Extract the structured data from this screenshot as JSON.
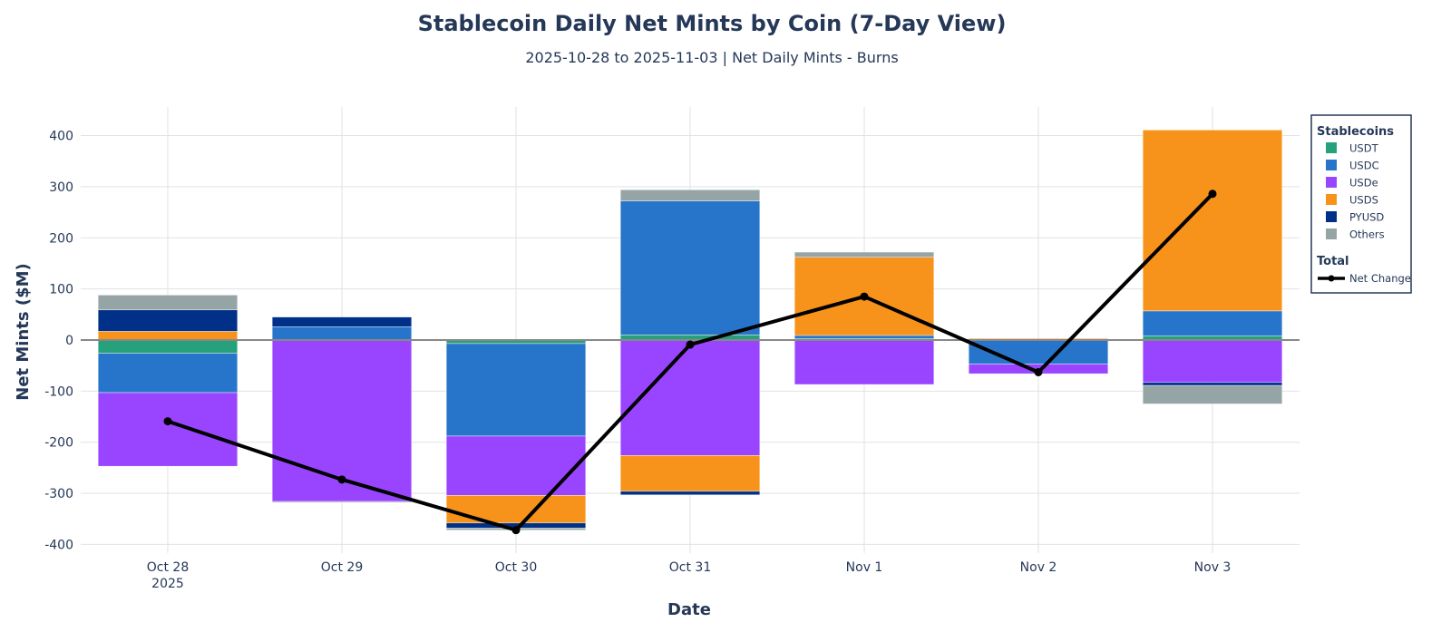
{
  "chart_data": {
    "type": "bar",
    "barmode": "relative",
    "title": "Stablecoin Daily Net Mints by Coin (7-Day View)",
    "subtitle": "2025-10-28 to 2025-11-03 | Net Daily Mints - Burns",
    "xlabel": "Date",
    "ylabel": "Net Mints ($M)",
    "categories": [
      "Oct 28",
      "Oct 29",
      "Oct 30",
      "Oct 31",
      "Nov 1",
      "Nov 2",
      "Nov 3"
    ],
    "x_year_label": "2025",
    "ylim": [
      -417,
      456
    ],
    "yticks": [
      -400,
      -300,
      -200,
      -100,
      0,
      100,
      200,
      300,
      400
    ],
    "grid": true,
    "legend_position": "right",
    "legend_groups": {
      "bars": "Stablecoins",
      "line": "Total"
    },
    "series": [
      {
        "name": "USDT",
        "color": "#26a17b",
        "values": [
          -26,
          0,
          -7,
          10,
          3,
          0,
          8
        ]
      },
      {
        "name": "USDC",
        "color": "#2775ca",
        "values": [
          -77,
          26,
          -181,
          262,
          6,
          -47,
          49
        ]
      },
      {
        "name": "USDe",
        "color": "#9945ff",
        "values": [
          -144,
          -316,
          -116,
          -226,
          -87,
          -19,
          -83
        ]
      },
      {
        "name": "USDS",
        "color": "#f7931a",
        "values": [
          17,
          0,
          -54,
          -70,
          153,
          3,
          354
        ]
      },
      {
        "name": "PYUSD",
        "color": "#003087",
        "values": [
          42,
          19,
          -10,
          -7,
          0,
          0,
          -6
        ]
      },
      {
        "name": "Others",
        "color": "#95a5a6",
        "values": [
          29,
          -2,
          -4,
          22,
          10,
          0,
          -36
        ]
      }
    ],
    "line": {
      "name": "Net Change",
      "color": "#000000",
      "values": [
        -159,
        -273,
        -372,
        -9,
        85,
        -63,
        286
      ]
    }
  }
}
